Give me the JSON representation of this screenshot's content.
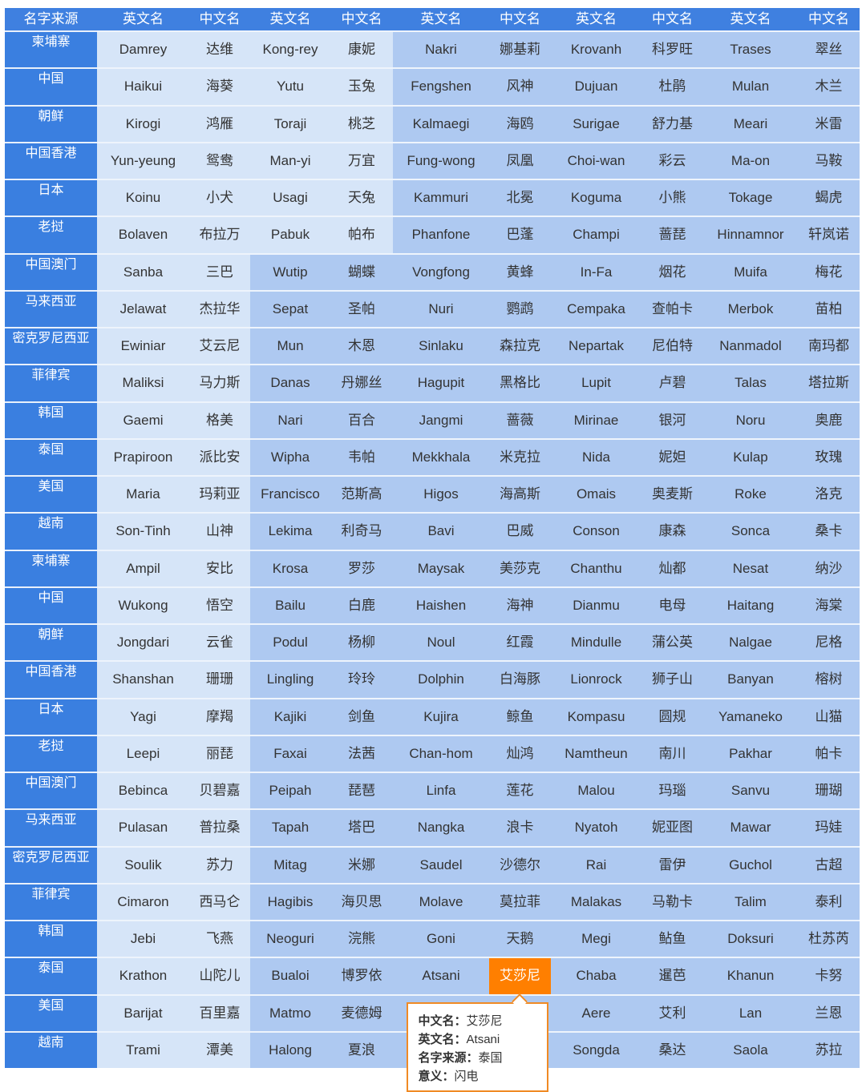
{
  "header": [
    "名字来源",
    "英文名",
    "中文名",
    "英文名",
    "中文名",
    "英文名",
    "中文名",
    "英文名",
    "中文名",
    "英文名",
    "中文名"
  ],
  "colors": {
    "header": "#3f80e0",
    "source_column": "#3a7fe0",
    "light_cell": "#d6e5f8",
    "medium_cell": "#aec9f1",
    "selected_cell": "#ff7f00",
    "tooltip_border": "#f08a24"
  },
  "rows": [
    [
      "柬埔寨",
      "Damrey",
      "达维",
      "Kong-rey",
      "康妮",
      "Nakri",
      "娜基莉",
      "Krovanh",
      "科罗旺",
      "Trases",
      "翠丝"
    ],
    [
      "中国",
      "Haikui",
      "海葵",
      "Yutu",
      "玉兔",
      "Fengshen",
      "风神",
      "Dujuan",
      "杜鹃",
      "Mulan",
      "木兰"
    ],
    [
      "朝鲜",
      "Kirogi",
      "鸿雁",
      "Toraji",
      "桃芝",
      "Kalmaegi",
      "海鸥",
      "Surigae",
      "舒力基",
      "Meari",
      "米雷"
    ],
    [
      "中国香港",
      "Yun-yeung",
      "鸳鸯",
      "Man-yi",
      "万宜",
      "Fung-wong",
      "凤凰",
      "Choi-wan",
      "彩云",
      "Ma-on",
      "马鞍"
    ],
    [
      "日本",
      "Koinu",
      "小犬",
      "Usagi",
      "天兔",
      "Kammuri",
      "北冕",
      "Koguma",
      "小熊",
      "Tokage",
      "蝎虎"
    ],
    [
      "老挝",
      "Bolaven",
      "布拉万",
      "Pabuk",
      "帕布",
      "Phanfone",
      "巴蓬",
      "Champi",
      "蔷琵",
      "Hinnamnor",
      "轩岚诺"
    ],
    [
      "中国澳门",
      "Sanba",
      "三巴",
      "Wutip",
      "蝴蝶",
      "Vongfong",
      "黄蜂",
      "In-Fa",
      "烟花",
      "Muifa",
      "梅花"
    ],
    [
      "马来西亚",
      "Jelawat",
      "杰拉华",
      "Sepat",
      "圣帕",
      "Nuri",
      "鹦鹉",
      "Cempaka",
      "查帕卡",
      "Merbok",
      "苗柏"
    ],
    [
      "密克罗尼西亚",
      "Ewiniar",
      "艾云尼",
      "Mun",
      "木恩",
      "Sinlaku",
      "森拉克",
      "Nepartak",
      "尼伯特",
      "Nanmadol",
      "南玛都"
    ],
    [
      "菲律宾",
      "Maliksi",
      "马力斯",
      "Danas",
      "丹娜丝",
      "Hagupit",
      "黑格比",
      "Lupit",
      "卢碧",
      "Talas",
      "塔拉斯"
    ],
    [
      "韩国",
      "Gaemi",
      "格美",
      "Nari",
      "百合",
      "Jangmi",
      "蔷薇",
      "Mirinae",
      "银河",
      "Noru",
      "奥鹿"
    ],
    [
      "泰国",
      "Prapiroon",
      "派比安",
      "Wipha",
      "韦帕",
      "Mekkhala",
      "米克拉",
      "Nida",
      "妮妲",
      "Kulap",
      "玫瑰"
    ],
    [
      "美国",
      "Maria",
      "玛莉亚",
      "Francisco",
      "范斯高",
      "Higos",
      "海高斯",
      "Omais",
      "奥麦斯",
      "Roke",
      "洛克"
    ],
    [
      "越南",
      "Son-Tinh",
      "山神",
      "Lekima",
      "利奇马",
      "Bavi",
      "巴威",
      "Conson",
      "康森",
      "Sonca",
      "桑卡"
    ],
    [
      "柬埔寨",
      "Ampil",
      "安比",
      "Krosa",
      "罗莎",
      "Maysak",
      "美莎克",
      "Chanthu",
      "灿都",
      "Nesat",
      "纳沙"
    ],
    [
      "中国",
      "Wukong",
      "悟空",
      "Bailu",
      "白鹿",
      "Haishen",
      "海神",
      "Dianmu",
      "电母",
      "Haitang",
      "海棠"
    ],
    [
      "朝鲜",
      "Jongdari",
      "云雀",
      "Podul",
      "杨柳",
      "Noul",
      "红霞",
      "Mindulle",
      "蒲公英",
      "Nalgae",
      "尼格"
    ],
    [
      "中国香港",
      "Shanshan",
      "珊珊",
      "Lingling",
      "玲玲",
      "Dolphin",
      "白海豚",
      "Lionrock",
      "狮子山",
      "Banyan",
      "榕树"
    ],
    [
      "日本",
      "Yagi",
      "摩羯",
      "Kajiki",
      "剑鱼",
      "Kujira",
      "鲸鱼",
      "Kompasu",
      "圆规",
      "Yamaneko",
      "山猫"
    ],
    [
      "老挝",
      "Leepi",
      "丽琵",
      "Faxai",
      "法茜",
      "Chan-hom",
      "灿鸿",
      "Namtheun",
      "南川",
      "Pakhar",
      "帕卡"
    ],
    [
      "中国澳门",
      "Bebinca",
      "贝碧嘉",
      "Peipah",
      "琵琶",
      "Linfa",
      "莲花",
      "Malou",
      "玛瑙",
      "Sanvu",
      "珊瑚"
    ],
    [
      "马来西亚",
      "Pulasan",
      "普拉桑",
      "Tapah",
      "塔巴",
      "Nangka",
      "浪卡",
      "Nyatoh",
      "妮亚图",
      "Mawar",
      "玛娃"
    ],
    [
      "密克罗尼西亚",
      "Soulik",
      "苏力",
      "Mitag",
      "米娜",
      "Saudel",
      "沙德尔",
      "Rai",
      "雷伊",
      "Guchol",
      "古超"
    ],
    [
      "菲律宾",
      "Cimaron",
      "西马仑",
      "Hagibis",
      "海贝思",
      "Molave",
      "莫拉菲",
      "Malakas",
      "马勒卡",
      "Talim",
      "泰利"
    ],
    [
      "韩国",
      "Jebi",
      "飞燕",
      "Neoguri",
      "浣熊",
      "Goni",
      "天鹅",
      "Megi",
      "鲇鱼",
      "Doksuri",
      "杜苏芮"
    ],
    [
      "泰国",
      "Krathon",
      "山陀儿",
      "Bualoi",
      "博罗依",
      "Atsani",
      "艾莎尼",
      "Chaba",
      "暹芭",
      "Khanun",
      "卡努"
    ],
    [
      "美国",
      "Barijat",
      "百里嘉",
      "Matmo",
      "麦德姆",
      "",
      "",
      "Aere",
      "艾利",
      "Lan",
      "兰恩"
    ],
    [
      "越南",
      "Trami",
      "潭美",
      "Halong",
      "夏浪",
      "",
      "",
      "Songda",
      "桑达",
      "Saola",
      "苏拉"
    ]
  ],
  "selected": {
    "row": 25,
    "col": 6
  },
  "tooltip": {
    "cn_label": "中文名：",
    "cn_value": "艾莎尼",
    "en_label": "英文名：",
    "en_value": "Atsani",
    "src_label": "名字来源：",
    "src_value": "泰国",
    "meaning_label": "意义：",
    "meaning_value": "闪电"
  }
}
